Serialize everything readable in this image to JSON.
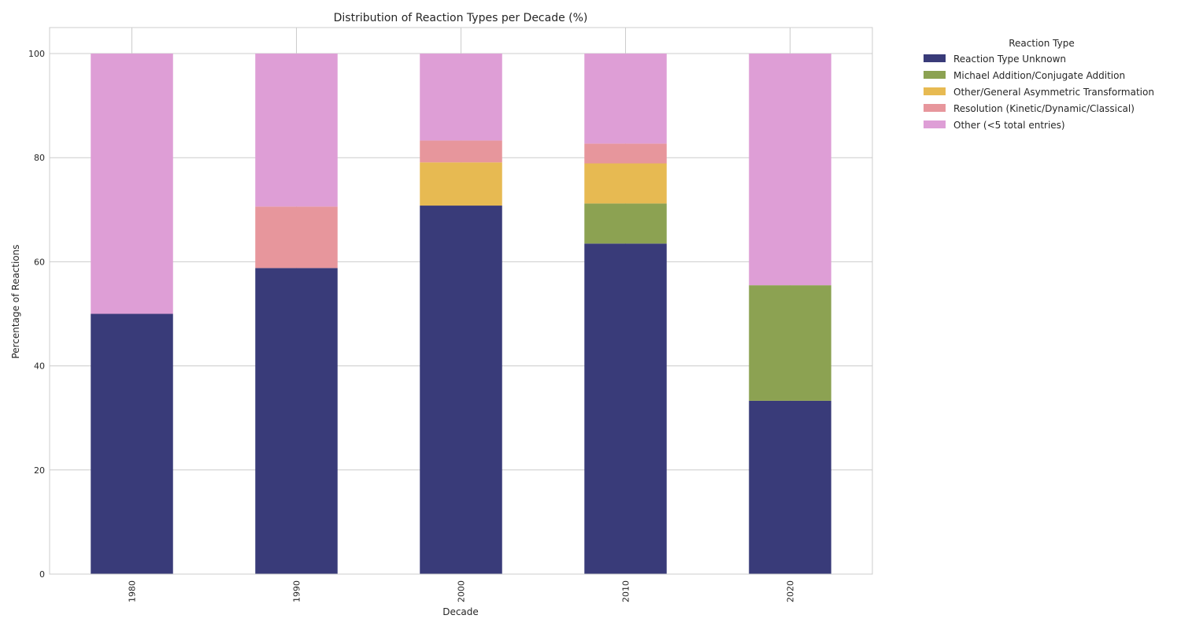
{
  "chart_data": {
    "type": "bar",
    "stacked": true,
    "title": "Distribution of Reaction Types per Decade (%)",
    "xlabel": "Decade",
    "ylabel": "Percentage of Reactions",
    "ylim": [
      0,
      105
    ],
    "yticks": [
      0,
      20,
      40,
      60,
      80,
      100
    ],
    "grid": true,
    "legend_title": "Reaction Type",
    "legend_placement": "outside-right-top",
    "categories": [
      "1980",
      "1990",
      "2000",
      "2010",
      "2020"
    ],
    "series": [
      {
        "name": "Reaction Type Unknown",
        "color": "#393b79",
        "values": [
          50.0,
          58.8,
          70.8,
          63.5,
          33.3
        ]
      },
      {
        "name": "Michael Addition/Conjugate Addition",
        "color": "#8ca252",
        "values": [
          0,
          0,
          0,
          7.7,
          22.2
        ]
      },
      {
        "name": "Other/General Asymmetric Transformation",
        "color": "#e7ba52",
        "values": [
          0,
          0,
          8.3,
          7.7,
          0
        ]
      },
      {
        "name": "Resolution (Kinetic/Dynamic/Classical)",
        "color": "#e7969c",
        "values": [
          0,
          11.8,
          4.2,
          3.8,
          0
        ]
      },
      {
        "name": "Other (<5 total entries)",
        "color": "#de9ed6",
        "values": [
          50.0,
          29.4,
          16.7,
          17.3,
          44.5
        ]
      }
    ]
  }
}
